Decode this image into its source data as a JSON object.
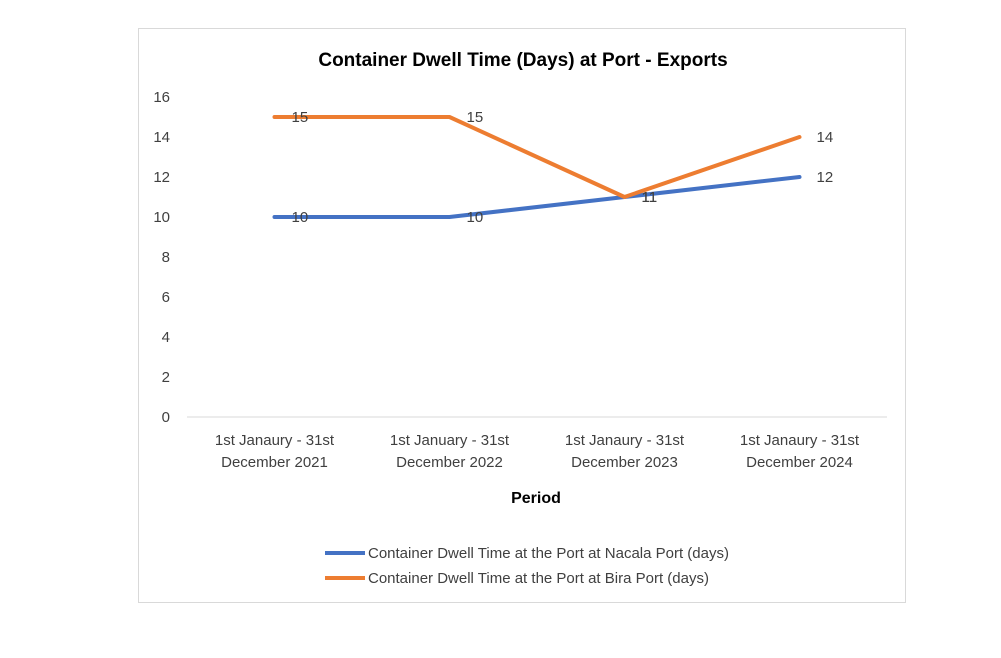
{
  "chart_data": {
    "type": "line",
    "title": "Container Dwell Time (Days) at Port - Exports",
    "xlabel": "Period",
    "ylabel": "",
    "ylim": [
      0,
      16
    ],
    "ytick_step": 2,
    "grid": false,
    "legend_position": "bottom",
    "categories": [
      [
        "1st Janaury - 31st",
        "December 2021"
      ],
      [
        "1st January - 31st",
        "December 2022"
      ],
      [
        "1st Janaury - 31st",
        "December 2023"
      ],
      [
        "1st Janaury - 31st",
        "December 2024"
      ]
    ],
    "series": [
      {
        "name": "Container Dwell Time at the Port at Nacala Port (days)",
        "color": "#4472C4",
        "values": [
          10,
          10,
          11,
          12
        ]
      },
      {
        "name": "Container Dwell Time at the Port at Bira Port (days)",
        "color": "#ED7D31",
        "values": [
          15,
          15,
          11,
          14
        ]
      }
    ]
  }
}
